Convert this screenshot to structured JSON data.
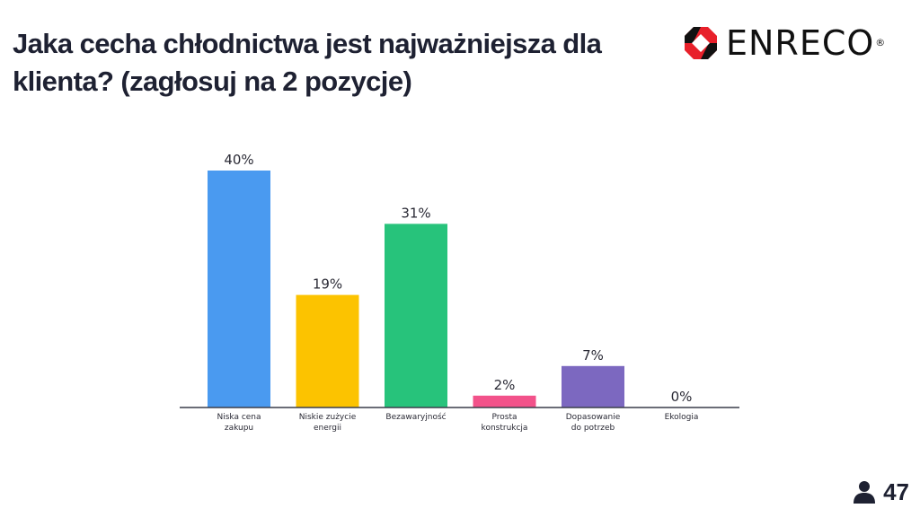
{
  "header": {
    "title": "Jaka cecha chłodnictwa jest najważniejsza dla klienta? (zagłosuj na 2 pozycje)",
    "logo_text": "ENRECO",
    "logo_reg": "®"
  },
  "footer": {
    "participants": "47",
    "participants_icon": "person-icon"
  },
  "chart_data": {
    "type": "bar",
    "title": "Jaka cecha chłodnictwa jest najważniejsza dla klienta? (zagłosuj na 2 pozycje)",
    "categories": [
      [
        "Niska cena",
        "zakupu"
      ],
      [
        "Niskie zużycie",
        "energii"
      ],
      [
        "Bezawaryjność"
      ],
      [
        "Prosta",
        "konstrukcja"
      ],
      [
        "Dopasowanie",
        "do potrzeb"
      ],
      [
        "Ekologia"
      ]
    ],
    "values": [
      40,
      19,
      31,
      2,
      7,
      0
    ],
    "value_labels": [
      "40%",
      "19%",
      "31%",
      "2%",
      "7%",
      "0%"
    ],
    "unit": "%",
    "colors": [
      "#4a9af0",
      "#fcc300",
      "#27c37b",
      "#f2528a",
      "#7c68c0",
      "#9aa0a6"
    ],
    "ylim": [
      0,
      40
    ],
    "grid": false,
    "legend": "none"
  }
}
